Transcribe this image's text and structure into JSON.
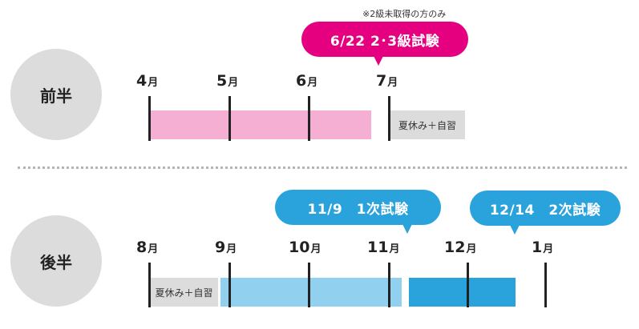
{
  "first_half": {
    "label": "前半",
    "note": "※2級未取得の方のみ",
    "exam_bubble": "6/22  2･3級試験",
    "months": [
      {
        "num": "4",
        "unit": "月"
      },
      {
        "num": "5",
        "unit": "月"
      },
      {
        "num": "6",
        "unit": "月"
      },
      {
        "num": "7",
        "unit": "月"
      }
    ],
    "summer_label": "夏休み＋自習"
  },
  "second_half": {
    "label": "後半",
    "exam1_bubble": "11/9　1次試験",
    "exam2_bubble": "12/14　2次試験",
    "months": [
      {
        "num": "8",
        "unit": "月"
      },
      {
        "num": "9",
        "unit": "月"
      },
      {
        "num": "10",
        "unit": "月"
      },
      {
        "num": "11",
        "unit": "月"
      },
      {
        "num": "12",
        "unit": "月"
      },
      {
        "num": "1",
        "unit": "月"
      }
    ],
    "summer_label": "夏休み＋自習"
  },
  "colors": {
    "pink_bubble": "#e5007f",
    "pink_bar": "#f5afd3",
    "blue_bubble": "#2aa2dc",
    "light_blue_bar": "#92d0f0",
    "blue_bar": "#2aa2dc",
    "gray": "#dcdcdc"
  }
}
